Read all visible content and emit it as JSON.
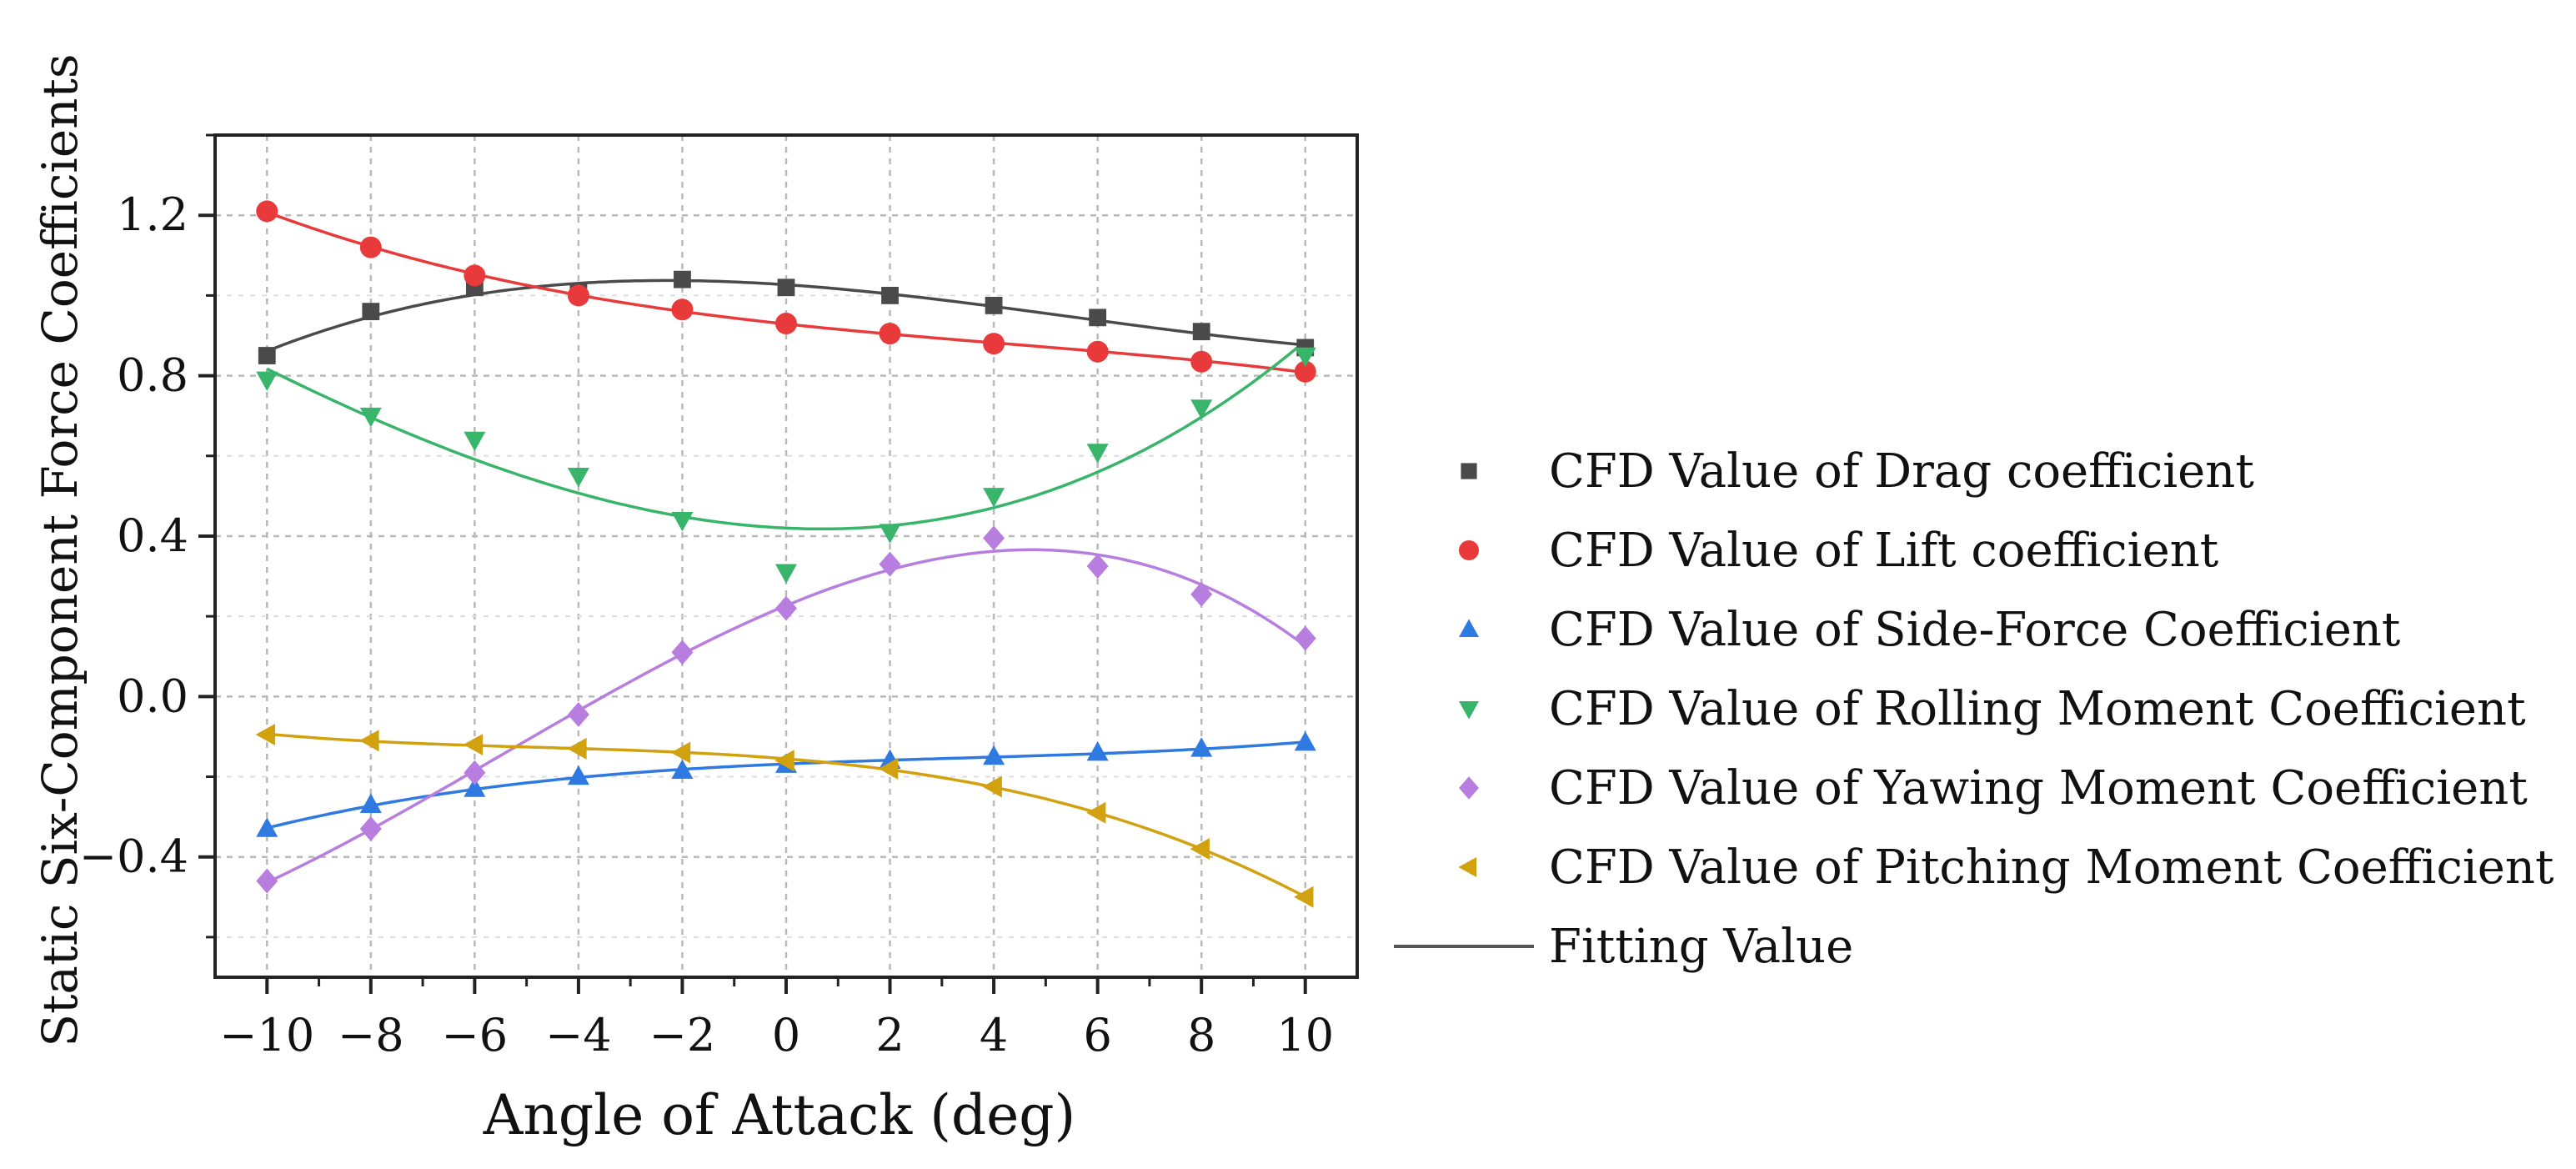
{
  "chart_data": {
    "type": "scatter",
    "title": "",
    "xlabel": "Angle of Attack (deg)",
    "ylabel": "Static Six-Component Force Coefficients",
    "xlim": [
      -11,
      11
    ],
    "ylim": [
      -0.7,
      1.4
    ],
    "x_ticks": [
      -10,
      -8,
      -6,
      -4,
      -2,
      0,
      2,
      4,
      6,
      8,
      10
    ],
    "x_tick_labels": [
      "−10",
      "−8",
      "−6",
      "−4",
      "−2",
      "0",
      "2",
      "4",
      "6",
      "8",
      "10"
    ],
    "y_ticks": [
      -0.4,
      0.0,
      0.4,
      0.8,
      1.2
    ],
    "y_tick_labels": [
      "−0.4",
      "0.0",
      "0.4",
      "0.8",
      "1.2"
    ],
    "grid": true,
    "legend_position": "right",
    "x": [
      -10,
      -8,
      -6,
      -4,
      -2,
      0,
      2,
      4,
      6,
      8,
      10
    ],
    "series": [
      {
        "name": "CFD Value of Drag coefficient",
        "marker": "square",
        "color": "#4a4a4a",
        "values": [
          0.85,
          0.96,
          1.02,
          1.01,
          1.04,
          1.02,
          1.0,
          0.975,
          0.945,
          0.91,
          0.87
        ]
      },
      {
        "name": "CFD Value of Lift coefficient",
        "marker": "circle",
        "color": "#e83a3a",
        "values": [
          1.21,
          1.12,
          1.05,
          1.0,
          0.965,
          0.93,
          0.905,
          0.88,
          0.86,
          0.835,
          0.81
        ]
      },
      {
        "name": "CFD Value of Side-Force Coefficient",
        "marker": "triangle-up",
        "color": "#2f7ae0",
        "values": [
          -0.33,
          -0.27,
          -0.23,
          -0.2,
          -0.185,
          -0.17,
          -0.16,
          -0.15,
          -0.14,
          -0.13,
          -0.115
        ]
      },
      {
        "name": "CFD Value of Rolling Moment Coefficient",
        "marker": "triangle-down",
        "color": "#38b56a",
        "values": [
          0.79,
          0.7,
          0.64,
          0.55,
          0.44,
          0.31,
          0.41,
          0.5,
          0.61,
          0.72,
          0.85
        ]
      },
      {
        "name": "CFD Value of Yawing Moment Coefficient",
        "marker": "diamond",
        "color": "#b77ee0",
        "values": [
          -0.46,
          -0.33,
          -0.19,
          -0.045,
          0.11,
          0.22,
          0.33,
          0.395,
          0.325,
          0.255,
          0.145
        ]
      },
      {
        "name": "CFD Value of Pitching Moment Coefficient",
        "marker": "triangle-left",
        "color": "#d1a10f",
        "values": [
          -0.095,
          -0.11,
          -0.12,
          -0.13,
          -0.14,
          -0.16,
          -0.18,
          -0.225,
          -0.29,
          -0.38,
          -0.5
        ]
      }
    ],
    "fitting_legend_label": "Fitting Value"
  }
}
